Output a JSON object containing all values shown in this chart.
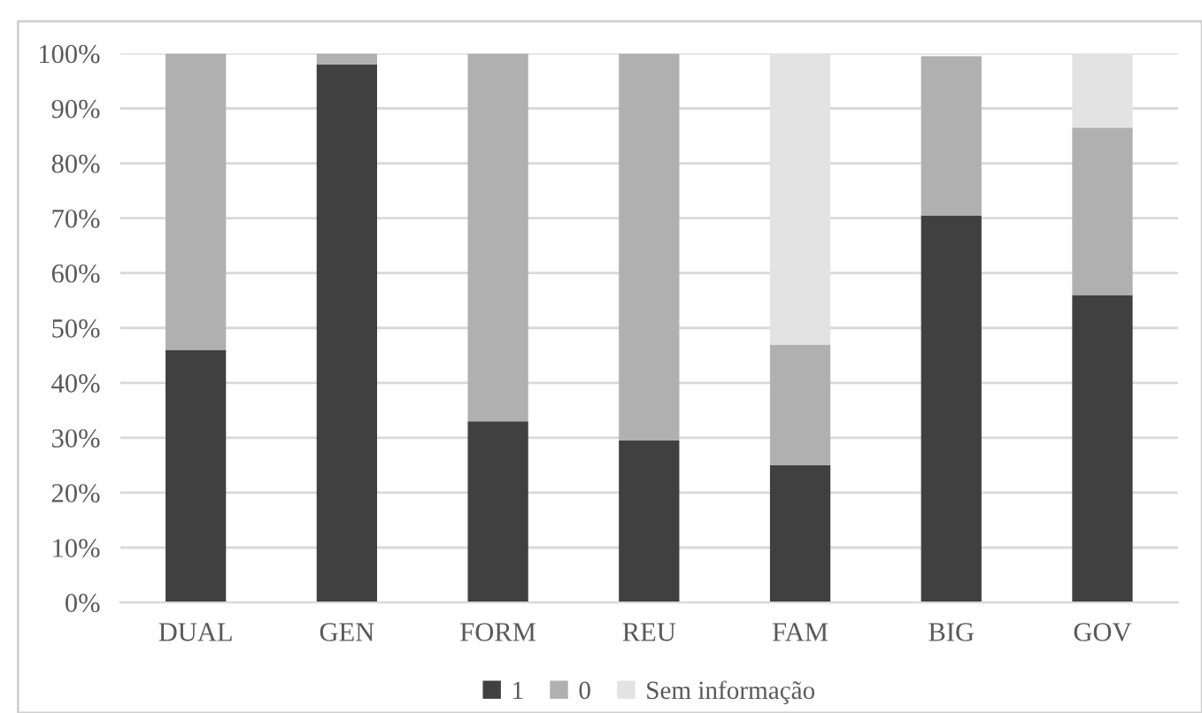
{
  "chart_data": {
    "type": "bar",
    "stacked": true,
    "categories": [
      "DUAL",
      "GEN",
      "FORM",
      "REU",
      "FAM",
      "BIG",
      "GOV"
    ],
    "series": [
      {
        "name": "1",
        "color": "#404040",
        "values": [
          46,
          98,
          33,
          29.5,
          25,
          70.5,
          56
        ]
      },
      {
        "name": "0",
        "color": "#b0b0b0",
        "values": [
          54,
          2,
          67,
          70.5,
          22,
          29,
          30.5
        ]
      },
      {
        "name": "Sem informação",
        "color": "#e3e3e3",
        "values": [
          0,
          0,
          0,
          0,
          53,
          0,
          13.5
        ]
      }
    ],
    "ylim": [
      0,
      100
    ],
    "yticks": [
      {
        "value": 0,
        "label": "0%"
      },
      {
        "value": 10,
        "label": "10%"
      },
      {
        "value": 20,
        "label": "20%"
      },
      {
        "value": 30,
        "label": "30%"
      },
      {
        "value": 40,
        "label": "40%"
      },
      {
        "value": 50,
        "label": "50%"
      },
      {
        "value": 60,
        "label": "60%"
      },
      {
        "value": 70,
        "label": "70%"
      },
      {
        "value": 80,
        "label": "80%"
      },
      {
        "value": 90,
        "label": "90%"
      },
      {
        "value": 100,
        "label": "100%"
      }
    ],
    "grid": "y",
    "legend": "bottom"
  }
}
